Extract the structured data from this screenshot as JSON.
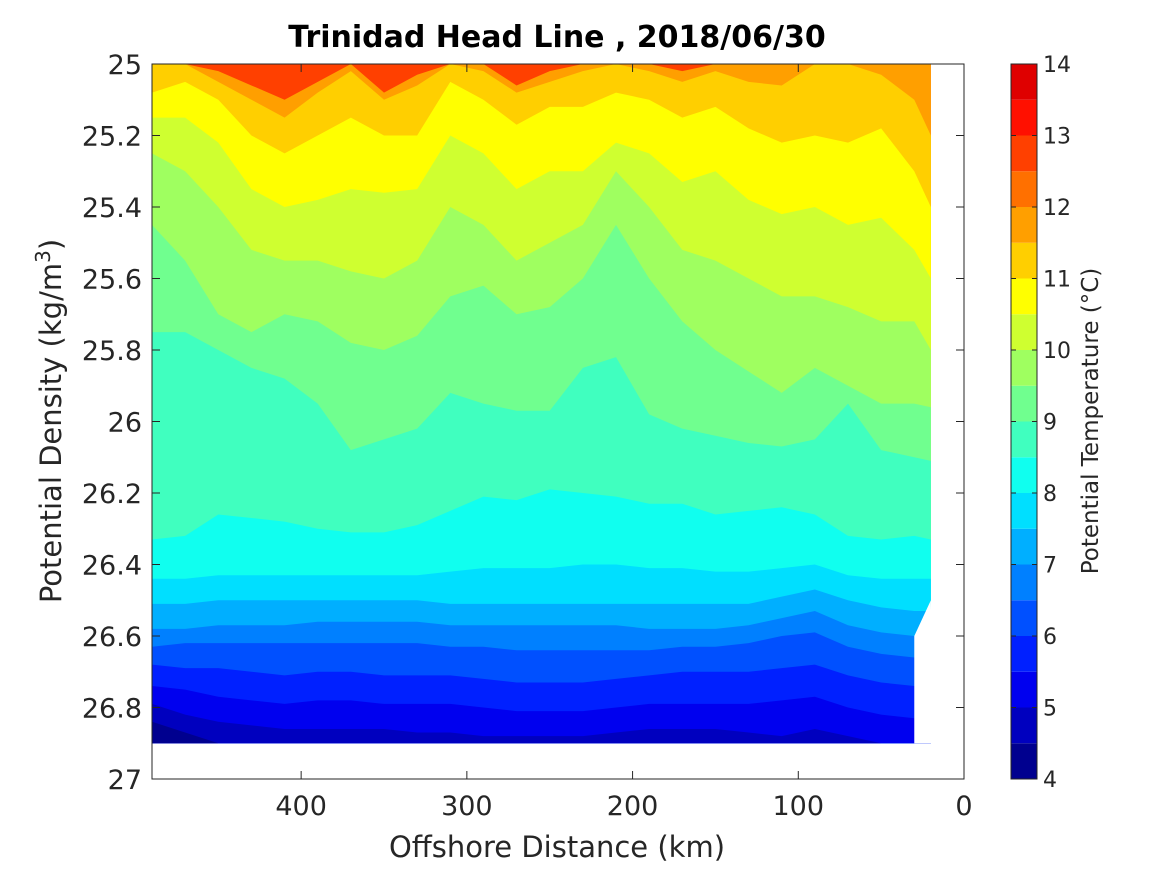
{
  "chart_data": {
    "type": "heatmap",
    "subtype": "filled-contour",
    "title": "Trinidad Head Line , 2018/06/30",
    "xlabel": "Offshore Distance (km)",
    "ylabel_main": "Potential Density (kg/m",
    "ylabel_sup": "3",
    "ylabel_close": ")",
    "colorbar_label": "Potential Temperature (°C)",
    "x_axis": {
      "reversed": true,
      "range": [
        490,
        0
      ],
      "ticks": [
        400,
        300,
        200,
        100,
        0
      ]
    },
    "y_axis": {
      "reversed": true,
      "range": [
        25,
        27
      ],
      "ticks": [
        "25",
        "25.2",
        "25.4",
        "25.6",
        "25.8",
        "26",
        "26.2",
        "26.4",
        "26.6",
        "26.8",
        "27"
      ]
    },
    "colorbar": {
      "range": [
        4,
        14
      ],
      "ticks": [
        "4",
        "5",
        "6",
        "7",
        "8",
        "9",
        "10",
        "11",
        "12",
        "13",
        "14"
      ],
      "levels": [
        4,
        4.5,
        5,
        5.5,
        6,
        6.5,
        7,
        7.5,
        8,
        8.5,
        9,
        9.5,
        10,
        10.5,
        11,
        11.5,
        12,
        12.5,
        13,
        13.5,
        14
      ],
      "colormap": "jet",
      "colors": [
        "#00008f",
        "#0000bf",
        "#0000ef",
        "#0020ff",
        "#0050ff",
        "#0080ff",
        "#00afff",
        "#00dfff",
        "#10ffef",
        "#40ffbf",
        "#70ff8f",
        "#9fff60",
        "#cfff30",
        "#ffff00",
        "#ffcf00",
        "#ff9f00",
        "#ff7000",
        "#ff4000",
        "#ff1000",
        "#df0000",
        "#af0000"
      ]
    },
    "data_extent": {
      "x_min_km": 20,
      "x_max_km": 490,
      "y_max_density": 26.9
    },
    "x_km": [
      490,
      470,
      450,
      430,
      410,
      390,
      370,
      350,
      330,
      310,
      290,
      270,
      250,
      230,
      210,
      190,
      170,
      150,
      130,
      110,
      90,
      70,
      50,
      30,
      20
    ],
    "contours": [
      {
        "level": 12.0,
        "density": [
          25.0,
          25.0,
          25.02,
          25.06,
          25.1,
          25.05,
          25.0,
          25.08,
          25.03,
          25.0,
          25.0,
          25.06,
          25.02,
          25.0,
          25.0,
          25.0,
          25.02,
          25.0,
          25.0,
          25.0,
          25.0,
          25.0,
          25.0,
          25.0,
          25.0
        ]
      },
      {
        "level": 11.5,
        "density": [
          25.0,
          25.0,
          25.05,
          25.1,
          25.15,
          25.08,
          25.02,
          25.1,
          25.06,
          25.0,
          25.02,
          25.08,
          25.05,
          25.02,
          25.0,
          25.02,
          25.05,
          25.02,
          25.05,
          25.06,
          25.0,
          25.0,
          25.03,
          25.1,
          25.2
        ]
      },
      {
        "level": 11.0,
        "density": [
          25.08,
          25.05,
          25.1,
          25.2,
          25.25,
          25.2,
          25.15,
          25.2,
          25.2,
          25.05,
          25.1,
          25.17,
          25.12,
          25.12,
          25.08,
          25.1,
          25.15,
          25.12,
          25.18,
          25.22,
          25.2,
          25.22,
          25.18,
          25.3,
          25.4
        ]
      },
      {
        "level": 10.5,
        "density": [
          25.15,
          25.15,
          25.22,
          25.35,
          25.4,
          25.38,
          25.35,
          25.36,
          25.35,
          25.2,
          25.25,
          25.35,
          25.3,
          25.3,
          25.22,
          25.25,
          25.33,
          25.3,
          25.38,
          25.42,
          25.4,
          25.45,
          25.43,
          25.52,
          25.6
        ]
      },
      {
        "level": 10.0,
        "density": [
          25.25,
          25.3,
          25.4,
          25.52,
          25.55,
          25.55,
          25.58,
          25.6,
          25.55,
          25.4,
          25.45,
          25.55,
          25.5,
          25.45,
          25.3,
          25.4,
          25.52,
          25.55,
          25.6,
          25.65,
          25.65,
          25.68,
          25.72,
          25.72,
          25.8
        ]
      },
      {
        "level": 9.5,
        "density": [
          25.45,
          25.55,
          25.7,
          25.75,
          25.7,
          25.72,
          25.78,
          25.8,
          25.76,
          25.65,
          25.62,
          25.7,
          25.68,
          25.6,
          25.45,
          25.6,
          25.72,
          25.8,
          25.86,
          25.92,
          25.85,
          25.9,
          25.95,
          25.95,
          25.96
        ]
      },
      {
        "level": 9.0,
        "density": [
          25.75,
          25.75,
          25.8,
          25.85,
          25.88,
          25.95,
          26.08,
          26.05,
          26.02,
          25.92,
          25.95,
          25.97,
          25.97,
          25.85,
          25.82,
          25.98,
          26.02,
          26.04,
          26.06,
          26.07,
          26.05,
          25.95,
          26.08,
          26.1,
          26.11
        ]
      },
      {
        "level": 8.5,
        "density": [
          26.33,
          26.32,
          26.26,
          26.27,
          26.28,
          26.3,
          26.31,
          26.31,
          26.29,
          26.25,
          26.21,
          26.22,
          26.19,
          26.2,
          26.21,
          26.23,
          26.23,
          26.26,
          26.25,
          26.24,
          26.26,
          26.32,
          26.33,
          26.32,
          26.33
        ]
      },
      {
        "level": 8.0,
        "density": [
          26.44,
          26.44,
          26.43,
          26.43,
          26.43,
          26.43,
          26.43,
          26.43,
          26.43,
          26.42,
          26.41,
          26.41,
          26.41,
          26.4,
          26.4,
          26.41,
          26.41,
          26.42,
          26.42,
          26.41,
          26.4,
          26.43,
          26.44,
          26.44,
          26.44
        ]
      },
      {
        "level": 7.5,
        "density": [
          26.51,
          26.51,
          26.5,
          26.5,
          26.5,
          26.5,
          26.5,
          26.5,
          26.5,
          26.51,
          26.51,
          26.51,
          26.51,
          26.51,
          26.51,
          26.51,
          26.51,
          26.51,
          26.51,
          26.49,
          26.47,
          26.5,
          26.52,
          26.53,
          26.53
        ]
      },
      {
        "level": 7.0,
        "density": [
          26.58,
          26.58,
          26.57,
          26.57,
          26.57,
          26.56,
          26.56,
          26.56,
          26.56,
          26.57,
          26.57,
          26.57,
          26.57,
          26.57,
          26.57,
          26.58,
          26.58,
          26.58,
          26.57,
          26.55,
          26.53,
          26.57,
          26.59,
          26.6,
          26.6
        ]
      },
      {
        "level": 6.5,
        "density": [
          26.63,
          26.62,
          26.62,
          26.62,
          26.62,
          26.62,
          26.62,
          26.62,
          26.62,
          26.63,
          26.63,
          26.64,
          26.64,
          26.64,
          26.64,
          26.64,
          26.63,
          26.63,
          26.62,
          26.6,
          26.59,
          26.63,
          26.65,
          26.66,
          26.66
        ]
      },
      {
        "level": 6.0,
        "density": [
          26.68,
          26.69,
          26.69,
          26.7,
          26.71,
          26.7,
          26.7,
          26.71,
          26.71,
          26.71,
          26.72,
          26.73,
          26.73,
          26.73,
          26.72,
          26.71,
          26.7,
          26.7,
          26.7,
          26.69,
          26.68,
          26.71,
          26.73,
          26.74,
          26.74
        ]
      },
      {
        "level": 5.5,
        "density": [
          26.74,
          26.75,
          26.77,
          26.78,
          26.79,
          26.78,
          26.78,
          26.79,
          26.79,
          26.79,
          26.8,
          26.81,
          26.81,
          26.81,
          26.8,
          26.79,
          26.79,
          26.79,
          26.79,
          26.78,
          26.77,
          26.8,
          26.82,
          26.83,
          26.83
        ]
      },
      {
        "level": 5.0,
        "density": [
          26.79,
          26.82,
          26.84,
          26.85,
          26.86,
          26.86,
          26.86,
          26.86,
          26.87,
          26.87,
          26.88,
          26.88,
          26.88,
          26.88,
          26.87,
          26.86,
          26.86,
          26.86,
          26.87,
          26.88,
          26.86,
          26.88,
          26.9,
          26.9,
          26.9
        ]
      },
      {
        "level": 4.5,
        "density": [
          26.84,
          26.87,
          26.9,
          26.9,
          26.9,
          26.9,
          26.9,
          26.9,
          26.9,
          26.9,
          26.9,
          26.9,
          26.9,
          26.9,
          26.9,
          26.9,
          26.9,
          26.9,
          26.9,
          26.9,
          26.9,
          26.9,
          26.9,
          26.9,
          26.9
        ]
      }
    ]
  }
}
